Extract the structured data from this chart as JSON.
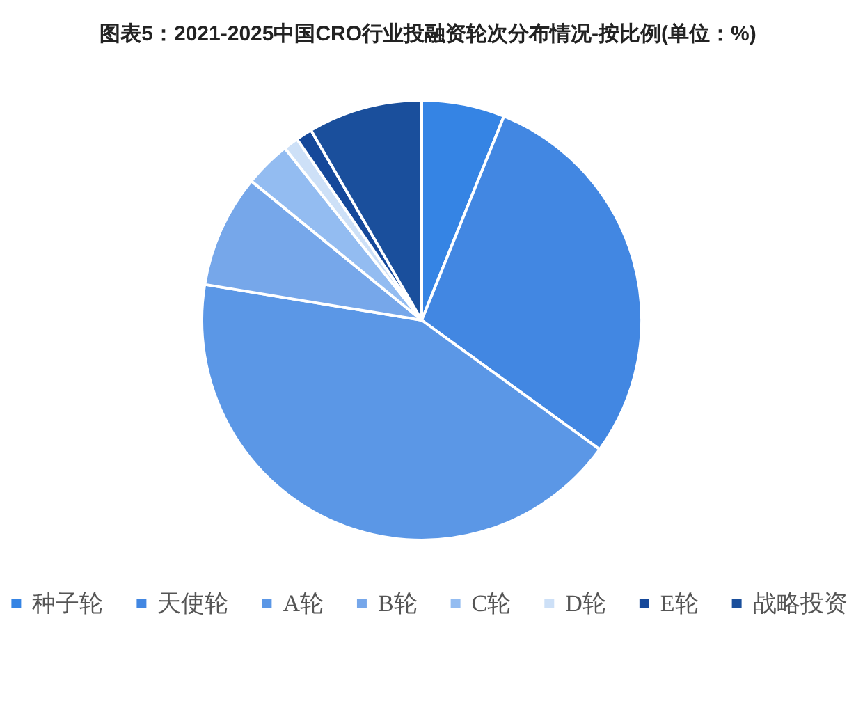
{
  "chart_data": {
    "type": "pie",
    "title": "图表5：2021-2025中国CRO行业投融资轮次分布情况-按比例(单位：%)",
    "categories": [
      "种子轮",
      "天使轮",
      "A轮",
      "B轮",
      "C轮",
      "D轮",
      "E轮",
      "战略投资"
    ],
    "values": [
      6.1,
      28.9,
      42.6,
      8.3,
      3.4,
      1.1,
      1.2,
      8.4
    ],
    "colors": [
      "#3584e4",
      "#4287e2",
      "#5b97e6",
      "#76a7ea",
      "#93bcf1",
      "#cde0f7",
      "#15489a",
      "#1a4f9c"
    ],
    "legend": "bottom"
  }
}
